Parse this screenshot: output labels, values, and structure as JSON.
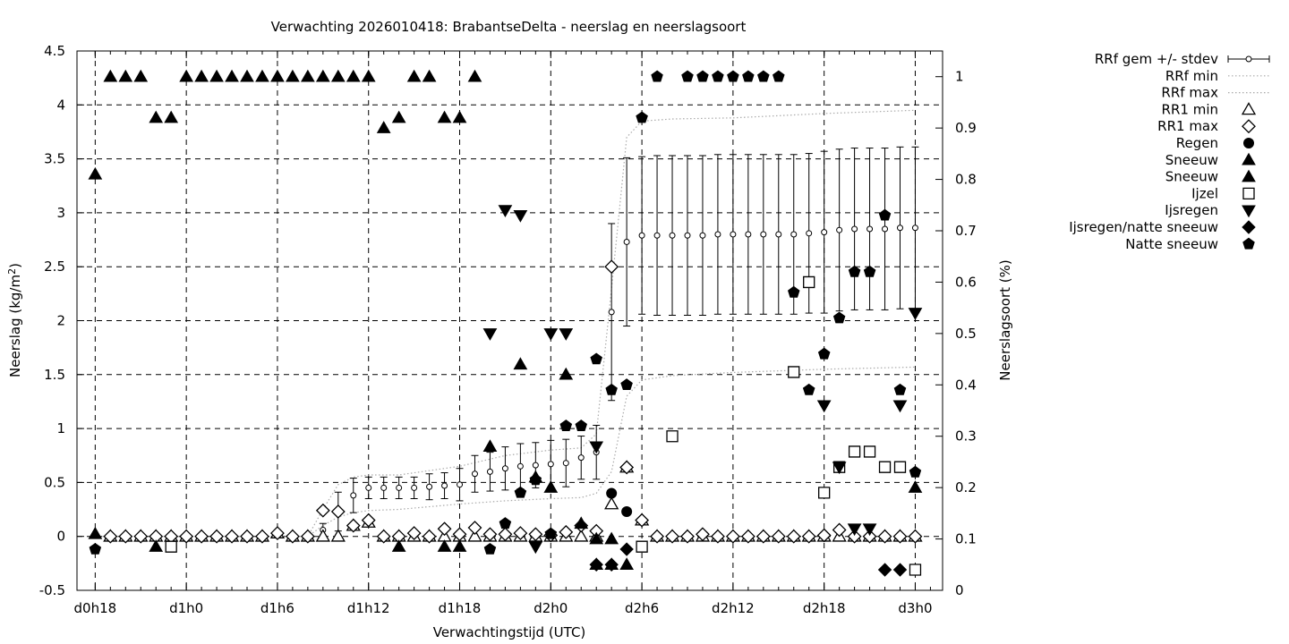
{
  "chart_data": {
    "type": "scatter",
    "title": "Verwachting 2026010418: BrabantseDelta - neerslag en neerslagsoort",
    "xlabel": "Verwachtingstijd (UTC)",
    "ylabel_left_main": "Neerslag (kg/m",
    "ylabel_left_sup": "2",
    "ylabel_left_end": ")",
    "ylabel_right": "Neerslagsoort (%)",
    "x_range_hours": [
      -1.2,
      55.8
    ],
    "y_left_range": [
      -0.5,
      4.5
    ],
    "y_right_range": [
      0,
      1.05
    ],
    "x_ticks": [
      {
        "h": 0,
        "label": "d0h18"
      },
      {
        "h": 6,
        "label": "d1h0"
      },
      {
        "h": 12,
        "label": "d1h6"
      },
      {
        "h": 18,
        "label": "d1h12"
      },
      {
        "h": 24,
        "label": "d1h18"
      },
      {
        "h": 30,
        "label": "d2h0"
      },
      {
        "h": 36,
        "label": "d2h6"
      },
      {
        "h": 42,
        "label": "d2h12"
      },
      {
        "h": 48,
        "label": "d2h18"
      },
      {
        "h": 54,
        "label": "d3h0"
      }
    ],
    "y_left_ticks": [
      "-0.5",
      "0",
      "0.5",
      "1",
      "1.5",
      "2",
      "2.5",
      "3",
      "3.5",
      "4",
      "4.5"
    ],
    "y_right_ticks": [
      "0",
      "0.1",
      "0.2",
      "0.3",
      "0.4",
      "0.5",
      "0.6",
      "0.7",
      "0.8",
      "0.9",
      "1"
    ],
    "grid": true,
    "legend_position": "right-outside",
    "legend": [
      {
        "label": "RRf gem +/- stdev",
        "symbol": "errorbar"
      },
      {
        "label": "RRf min",
        "symbol": "dotted"
      },
      {
        "label": "RRf max",
        "symbol": "dotted"
      },
      {
        "label": "RR1 min",
        "symbol": "triangle-open"
      },
      {
        "label": "RR1 max",
        "symbol": "diamond-open"
      },
      {
        "label": "Regen",
        "symbol": "circle"
      },
      {
        "label": "Sneeuw",
        "symbol": "triangle"
      },
      {
        "label": "Sneeuw",
        "symbol": "triangle"
      },
      {
        "label": "Ijzel",
        "symbol": "square-open"
      },
      {
        "label": "Ijsregen",
        "symbol": "triangle-down"
      },
      {
        "label": "Ijsregen/natte sneeuw",
        "symbol": "diamond"
      },
      {
        "label": "Natte sneeuw",
        "symbol": "pentagon"
      }
    ],
    "series": {
      "rrf_mean": {
        "x": [
          15,
          16,
          17,
          18,
          19,
          20,
          21,
          22,
          23,
          24,
          25,
          26,
          27,
          28,
          29,
          30,
          31,
          32,
          33,
          34,
          35,
          36,
          37,
          38,
          39,
          40,
          41,
          42,
          43,
          44,
          45,
          46,
          47,
          48,
          49,
          50,
          51,
          52,
          53,
          54
        ],
        "y": [
          0.06,
          0.23,
          0.38,
          0.45,
          0.45,
          0.45,
          0.45,
          0.46,
          0.47,
          0.48,
          0.58,
          0.6,
          0.63,
          0.65,
          0.66,
          0.67,
          0.68,
          0.73,
          0.78,
          2.08,
          2.73,
          2.79,
          2.79,
          2.79,
          2.79,
          2.79,
          2.8,
          2.8,
          2.8,
          2.8,
          2.8,
          2.8,
          2.81,
          2.82,
          2.84,
          2.85,
          2.85,
          2.85,
          2.86,
          2.86
        ],
        "sd": [
          0.06,
          0.18,
          0.16,
          0.1,
          0.1,
          0.1,
          0.1,
          0.12,
          0.12,
          0.15,
          0.17,
          0.18,
          0.2,
          0.21,
          0.21,
          0.22,
          0.22,
          0.2,
          0.25,
          0.82,
          0.78,
          0.73,
          0.74,
          0.74,
          0.74,
          0.74,
          0.74,
          0.74,
          0.74,
          0.74,
          0.74,
          0.74,
          0.74,
          0.75,
          0.75,
          0.75,
          0.75,
          0.75,
          0.75,
          0.75
        ]
      },
      "rrf_min": {
        "x": [
          0,
          14,
          15,
          16,
          17,
          18,
          20,
          24,
          27,
          30,
          32,
          33,
          34,
          35,
          36,
          38,
          42,
          48,
          54
        ],
        "y": [
          0,
          0,
          0.1,
          0.18,
          0.22,
          0.24,
          0.25,
          0.3,
          0.33,
          0.35,
          0.36,
          0.4,
          0.6,
          1.3,
          1.45,
          1.49,
          1.52,
          1.55,
          1.57
        ]
      },
      "rrf_max": {
        "x": [
          0,
          14,
          15,
          16,
          17,
          18,
          20,
          24,
          27,
          30,
          32,
          33,
          34,
          35,
          36,
          38,
          42,
          48,
          54
        ],
        "y": [
          0,
          0,
          0.25,
          0.48,
          0.55,
          0.57,
          0.57,
          0.65,
          0.75,
          0.8,
          0.82,
          0.95,
          2.3,
          3.7,
          3.85,
          3.87,
          3.88,
          3.92,
          3.95
        ]
      },
      "rr1_min": {
        "x": [
          1,
          2,
          3,
          4,
          5,
          6,
          7,
          8,
          9,
          10,
          11,
          12,
          13,
          14,
          15,
          16,
          17,
          18,
          19,
          20,
          21,
          22,
          23,
          24,
          25,
          26,
          27,
          28,
          29,
          30,
          31,
          32,
          33,
          34,
          35,
          36,
          37,
          38,
          39,
          40,
          41,
          42,
          43,
          44,
          45,
          46,
          47,
          48,
          49,
          50,
          51,
          52,
          53,
          54
        ],
        "y": [
          0,
          0,
          0,
          0,
          0,
          0,
          0,
          0,
          0,
          0,
          0,
          0.03,
          0,
          0,
          0,
          0,
          0.1,
          0.13,
          0,
          0,
          0,
          0,
          0,
          0,
          0,
          0,
          0,
          0,
          0,
          0,
          0,
          0,
          0,
          0.3,
          0.64,
          0.15,
          0,
          0,
          0,
          0,
          0,
          0,
          0,
          0,
          0,
          0,
          0,
          0,
          0,
          0,
          0,
          0,
          0,
          0
        ]
      },
      "rr1_max": {
        "x": [
          1,
          2,
          3,
          4,
          5,
          6,
          7,
          8,
          9,
          10,
          11,
          12,
          13,
          14,
          15,
          16,
          17,
          18,
          19,
          20,
          21,
          22,
          23,
          24,
          25,
          26,
          27,
          28,
          29,
          30,
          31,
          32,
          33,
          34,
          35,
          36,
          37,
          38,
          39,
          40,
          41,
          42,
          43,
          44,
          45,
          46,
          47,
          48,
          49,
          50,
          51,
          52,
          53,
          54
        ],
        "y": [
          0,
          0,
          0,
          0,
          0,
          0,
          0,
          0,
          0,
          0,
          0,
          0.03,
          0,
          0,
          0.24,
          0.23,
          0.1,
          0.15,
          0,
          0,
          0.03,
          0,
          0.07,
          0.02,
          0.08,
          0.02,
          0.02,
          0.03,
          0.02,
          0.01,
          0.04,
          0.1,
          0.05,
          2.5,
          0.64,
          0.15,
          0,
          0,
          0,
          0.02,
          0,
          0,
          0,
          0,
          0,
          0,
          0,
          0.01,
          0.06,
          0,
          0,
          0,
          0,
          0
        ]
      },
      "regen": {
        "x": [
          34,
          35
        ],
        "y": [
          0.4,
          0.23
        ]
      },
      "sneeuw": {
        "x": [
          0,
          1,
          2,
          3,
          4,
          5,
          6,
          7,
          8,
          9,
          10,
          11,
          12,
          13,
          14,
          15,
          16,
          17,
          18,
          19,
          20,
          21,
          22,
          23,
          24,
          25,
          26,
          28,
          29,
          30,
          31,
          32,
          33,
          34
        ],
        "y": [
          0.81,
          1.0,
          1.0,
          1.0,
          0.92,
          0.92,
          1.0,
          1.0,
          1.0,
          1.0,
          1.0,
          1.0,
          1.0,
          1.0,
          1.0,
          1.0,
          1.0,
          1.0,
          1.0,
          0.9,
          0.92,
          1.0,
          1.0,
          0.92,
          0.92,
          1.0,
          0.28,
          0.44,
          0.22,
          0.2,
          0.42,
          0.13,
          0.1,
          0.1
        ]
      },
      "sneeuw_low": {
        "x": [
          0,
          4,
          20,
          23,
          24,
          33,
          34,
          35,
          54
        ],
        "y": [
          0.11,
          0.085,
          0.085,
          0.085,
          0.085,
          0.05,
          0.05,
          0.05,
          0.2
        ]
      },
      "ijzel": {
        "x": [
          5,
          36,
          38,
          48,
          49,
          50,
          51,
          52,
          53,
          54,
          47,
          46
        ],
        "y": [
          0.085,
          0.085,
          0.3,
          0.19,
          0.24,
          0.27,
          0.27,
          0.24,
          0.24,
          0.04,
          0.6,
          0.425
        ]
      },
      "ijsregen": {
        "x": [
          26,
          27,
          28,
          29,
          30,
          31,
          33,
          48,
          49,
          50,
          51,
          53,
          54
        ],
        "y": [
          0.5,
          0.74,
          0.73,
          0.085,
          0.5,
          0.5,
          0.28,
          0.36,
          0.24,
          0.12,
          0.12,
          0.36,
          0.54
        ]
      },
      "ijsregen_natte_sneeuw": {
        "x": [
          33,
          34,
          35,
          52,
          53
        ],
        "y": [
          0.05,
          0.05,
          0.08,
          0.04,
          0.04
        ]
      },
      "natte_sneeuw": {
        "x": [
          0,
          26,
          27,
          28,
          29,
          30,
          31,
          32,
          33,
          34,
          35,
          36,
          37,
          39,
          40,
          41,
          42,
          43,
          44,
          45,
          46,
          47,
          48,
          49,
          50,
          51,
          52,
          53,
          54
        ],
        "y": [
          0.08,
          0.08,
          0.13,
          0.19,
          0.215,
          0.11,
          0.32,
          0.32,
          0.45,
          0.39,
          0.4,
          0.92,
          1.0,
          1.0,
          1.0,
          1.0,
          1.0,
          1.0,
          1.0,
          1.0,
          0.58,
          0.39,
          0.46,
          0.53,
          0.62,
          0.62,
          0.73,
          0.39,
          0.23
        ]
      }
    }
  }
}
